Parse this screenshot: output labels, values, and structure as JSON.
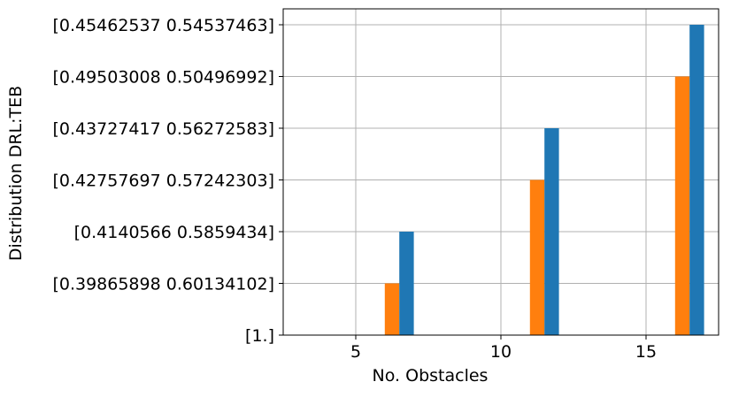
{
  "chart_data": {
    "type": "bar",
    "title": "",
    "xlabel": "No. Obstacles",
    "ylabel": "Distribution DRL:TEB",
    "x_ticks": [
      5,
      10,
      15
    ],
    "xlim": [
      2.5,
      17.5
    ],
    "y_categories": [
      "[1.]",
      "[0.39865898 0.60134102]",
      "[0.4140566 0.5859434]",
      "[0.42757697 0.57242303]",
      "[0.43727417 0.56272583]",
      "[0.49503008 0.50496992]",
      "[0.45462537 0.54537463]"
    ],
    "grid": true,
    "legend": "none",
    "series": [
      {
        "color": "#ff7f0e",
        "x": [
          6.25,
          11.25,
          16.25
        ],
        "values": [
          "[0.39865898 0.60134102]",
          "[0.42757697 0.57242303]",
          "[0.49503008 0.50496992]"
        ]
      },
      {
        "color": "#1f77b4",
        "x": [
          6.75,
          11.75,
          16.75
        ],
        "values": [
          "[0.4140566 0.5859434]",
          "[0.43727417 0.56272583]",
          "[0.45462537 0.54537463]"
        ]
      }
    ],
    "bar_width": 0.5
  }
}
